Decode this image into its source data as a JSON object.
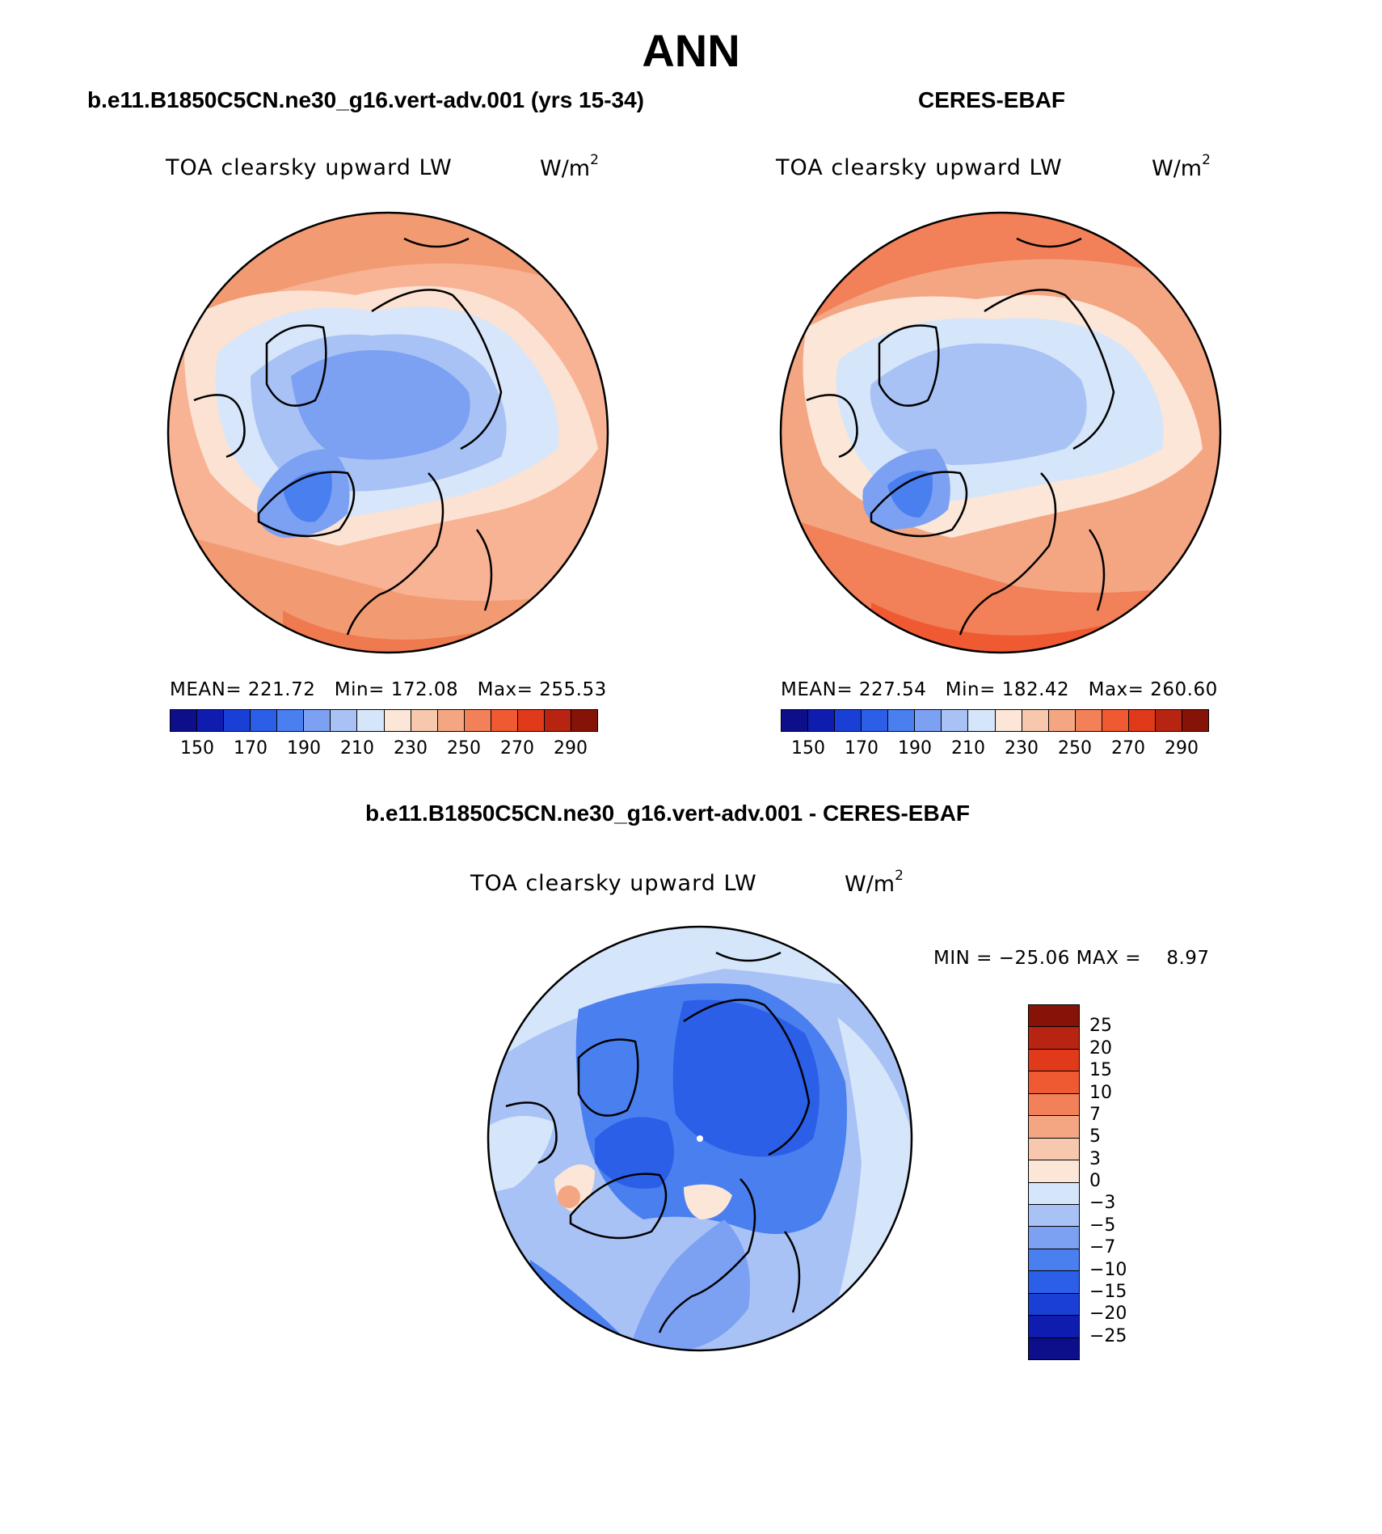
{
  "title": "ANN",
  "panels": [
    {
      "title": "b.e11.B1850C5CN.ne30_g16.vert-adv.001 (yrs 15-34)",
      "variable": "TOA clearsky upward LW",
      "unit_base": "W/m",
      "unit_exp": "2",
      "stats": "MEAN= 221.72   Min= 172.08   Max= 255.53"
    },
    {
      "title": "CERES-EBAF",
      "variable": "TOA clearsky upward LW",
      "unit_base": "W/m",
      "unit_exp": "2",
      "stats": "MEAN= 227.54   Min= 182.42   Max= 260.60"
    }
  ],
  "diff_panel": {
    "title": "b.e11.B1850C5CN.ne30_g16.vert-adv.001 - CERES-EBAF",
    "variable": "TOA clearsky upward LW",
    "unit_base": "W/m",
    "unit_exp": "2",
    "stats": "MIN = −25.06 MAX =    8.97"
  },
  "colorbar_abs": {
    "colors": [
      "#0d0f8a",
      "#0e1cb0",
      "#1a3fd6",
      "#2b5fe8",
      "#4a7ff0",
      "#7ca0f2",
      "#a9c2f5",
      "#d5e5fa",
      "#fbe6d8",
      "#f7c8ae",
      "#f4a683",
      "#f28058",
      "#ef5a33",
      "#e03a1a",
      "#b82412",
      "#861307"
    ],
    "tick_labels": [
      "150",
      "170",
      "190",
      "210",
      "230",
      "250",
      "270",
      "290"
    ]
  },
  "colorbar_diff": {
    "colors": [
      "#861307",
      "#b82412",
      "#e03a1a",
      "#ef5a33",
      "#f28058",
      "#f4a683",
      "#f7c8ae",
      "#fbe6d8",
      "#d5e5fa",
      "#a9c2f5",
      "#7ca0f2",
      "#4a7ff0",
      "#2b5fe8",
      "#1a3fd6",
      "#0e1cb0",
      "#0d0f8a"
    ],
    "tick_labels": [
      "25",
      "20",
      "15",
      "10",
      "7",
      "5",
      "3",
      "0",
      "−3",
      "−5",
      "−7",
      "−10",
      "−15",
      "−20",
      "−25"
    ]
  }
}
